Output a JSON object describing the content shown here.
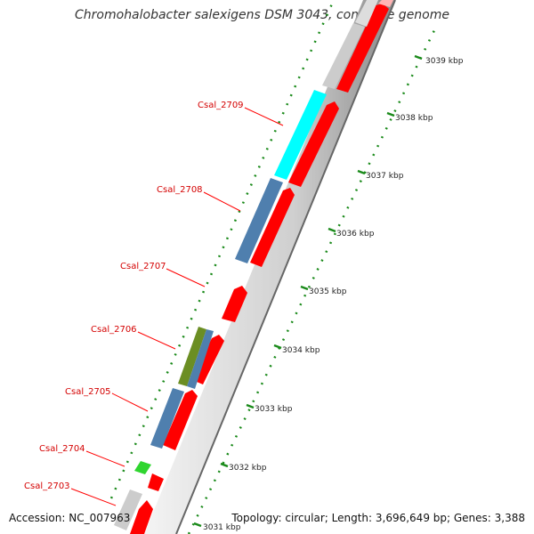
{
  "title": "Chromohalobacter salexigens DSM 3043, complete genome",
  "footer": {
    "accession": "Accession: NC_007963",
    "topology": "Topology: circular; Length: 3,696,649 bp; Genes: 3,388"
  },
  "scale_ticks": [
    "3031 kbp",
    "3032 kbp",
    "3033 kbp",
    "3034 kbp",
    "3035 kbp",
    "3036 kbp",
    "3037 kbp",
    "3038 kbp",
    "3039 kbp"
  ],
  "gene_labels": [
    "Csal_2703",
    "Csal_2704",
    "Csal_2705",
    "Csal_2706",
    "Csal_2707",
    "Csal_2708",
    "Csal_2709"
  ],
  "colors": {
    "forward_strand": "#ff0000",
    "highlight_cyan": "#00ffff",
    "steelblue": "#4f7fae",
    "olive": "#6b8e23",
    "green": "#2fd52f",
    "gray": "#cccccc",
    "tick_green": "#1a8a1a",
    "label_red": "#d40000"
  }
}
